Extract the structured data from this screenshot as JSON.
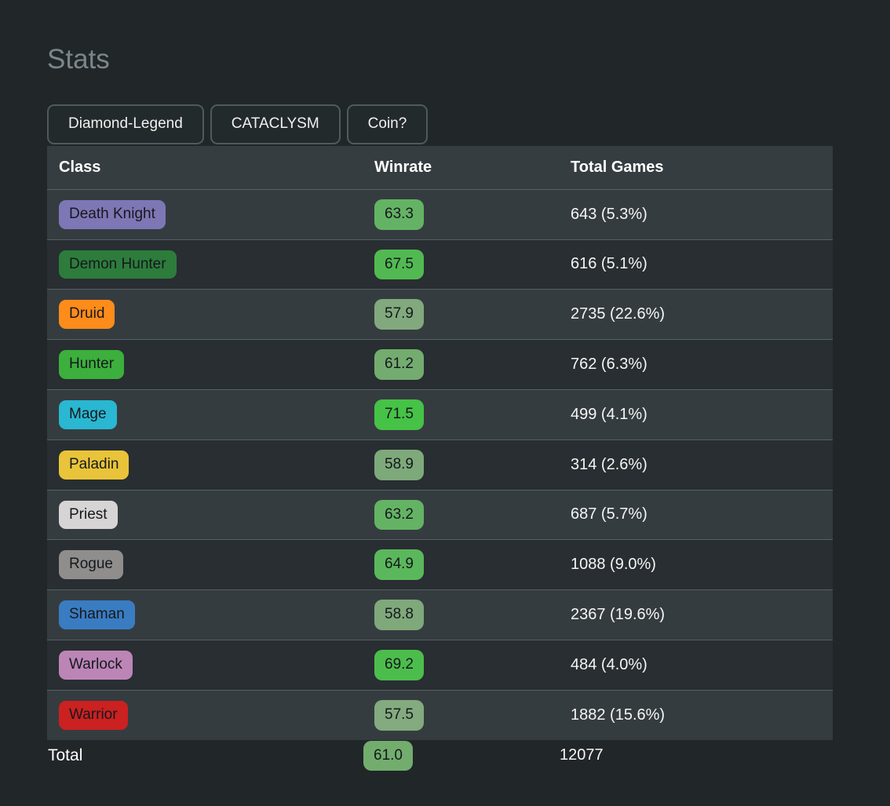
{
  "page": {
    "title": "Stats"
  },
  "colors": {
    "background": "#212628",
    "header_bg": "#363d41",
    "row_odd_bg": "#353c40",
    "row_even_bg": "#282e31",
    "total_row_bg": "#232a2c",
    "row_border": "#566065",
    "title_text": "#7b868b"
  },
  "filters": [
    {
      "label": "Diamond-Legend"
    },
    {
      "label": "CATACLYSM"
    },
    {
      "label": "Coin?"
    }
  ],
  "table": {
    "headers": [
      "Class",
      "Winrate",
      "Total Games"
    ],
    "rows": [
      {
        "class": "Death Knight",
        "class_color": "#7e77b5",
        "winrate": "63.3",
        "winrate_color": "#64b364",
        "games": "643 (5.3%)"
      },
      {
        "class": "Demon Hunter",
        "class_color": "#2d7c3c",
        "winrate": "67.5",
        "winrate_color": "#52b952",
        "games": "616 (5.1%)"
      },
      {
        "class": "Druid",
        "class_color": "#fe8c1b",
        "winrate": "57.9",
        "winrate_color": "#82a97d",
        "games": "2735 (22.6%)"
      },
      {
        "class": "Hunter",
        "class_color": "#3caf3c",
        "winrate": "61.2",
        "winrate_color": "#74ac70",
        "games": "762 (6.3%)"
      },
      {
        "class": "Mage",
        "class_color": "#29b7d2",
        "winrate": "71.5",
        "winrate_color": "#46c246",
        "games": "499 (4.1%)"
      },
      {
        "class": "Paladin",
        "class_color": "#e9c43a",
        "winrate": "58.9",
        "winrate_color": "#7ea97a",
        "games": "314 (2.6%)"
      },
      {
        "class": "Priest",
        "class_color": "#d6d4d4",
        "winrate": "63.2",
        "winrate_color": "#64b364",
        "games": "687 (5.7%)"
      },
      {
        "class": "Rogue",
        "class_color": "#908d8d",
        "winrate": "64.9",
        "winrate_color": "#5bb75b",
        "games": "1088 (9.0%)"
      },
      {
        "class": "Shaman",
        "class_color": "#3a7cc1",
        "winrate": "58.8",
        "winrate_color": "#7fa87b",
        "games": "2367 (19.6%)"
      },
      {
        "class": "Warlock",
        "class_color": "#bc85b6",
        "winrate": "69.2",
        "winrate_color": "#4cbd4c",
        "games": "484 (4.0%)"
      },
      {
        "class": "Warrior",
        "class_color": "#cb2121",
        "winrate": "57.5",
        "winrate_color": "#84aa7f",
        "games": "1882 (15.6%)"
      }
    ],
    "total": {
      "label": "Total",
      "winrate": "61.0",
      "winrate_color": "#72ad6e",
      "games": "12077"
    }
  }
}
